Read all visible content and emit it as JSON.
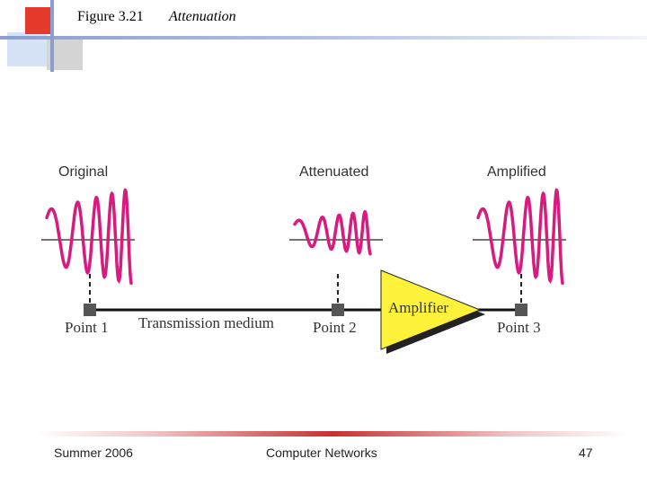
{
  "title": {
    "figure": "Figure 3.21",
    "text": "Attenuation"
  },
  "diagram": {
    "stages": [
      "Original",
      "Attenuated",
      "Amplified"
    ],
    "points": [
      "Point 1",
      "Point 2",
      "Point 3"
    ],
    "medium_label": "Transmission medium",
    "amplifier_label": "Amplifier"
  },
  "footer": {
    "left": "Summer 2006",
    "center": "Computer Networks",
    "page": "47"
  },
  "colors": {
    "signal": "#d81b7e",
    "amplifier": "#fff23a",
    "accent_red": "#e53b2c",
    "accent_blue": "#8a9fd0"
  }
}
